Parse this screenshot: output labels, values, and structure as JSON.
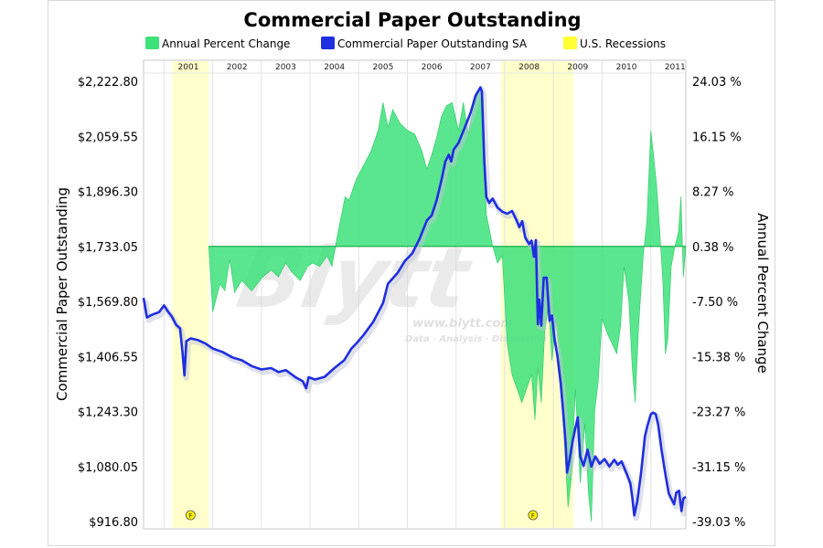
{
  "chart_data": {
    "type": "line",
    "title": "Commercial Paper Outstanding",
    "legend": {
      "placement": "top-center",
      "entries": [
        {
          "label": "Annual Percent Change",
          "color": "#3de27a"
        },
        {
          "label": "Commercial Paper Outstanding SA",
          "color": "#1f2ee0"
        },
        {
          "label": "U.S. Recessions",
          "color": "#ffff33"
        }
      ]
    },
    "ylabel_left": "Commercial Paper Outstanding",
    "ylabel_right": "Annual Percent Change",
    "y_left": {
      "range": [
        916.8,
        2222.8
      ],
      "ticks": [
        "$2,222.80",
        "$2,059.55",
        "$1,896.30",
        "$1,733.05",
        "$1,569.80",
        "$1,406.55",
        "$1,243.30",
        "$1,080.05",
        "$916.80"
      ]
    },
    "y_right": {
      "range": [
        -39.03,
        24.03
      ],
      "ticks": [
        "24.03 %",
        "16.15 %",
        "8.27 %",
        "0.38 %",
        "-7.50 %",
        "-15.38 %",
        "-23.27 %",
        "-31.15 %",
        "-39.03 %"
      ]
    },
    "x": {
      "range": [
        2000.58,
        2011.72
      ],
      "years": [
        "2001",
        "2002",
        "2003",
        "2004",
        "2005",
        "2006",
        "2007",
        "2008",
        "2009",
        "2010",
        "2011"
      ]
    },
    "recessions": [
      [
        2001.17,
        2001.92
      ],
      [
        2007.92,
        2009.42
      ]
    ],
    "series": [
      {
        "name": "Commercial Paper Outstanding SA",
        "color": "#1f2ee0",
        "axis": "left",
        "points": [
          [
            2000.58,
            1580
          ],
          [
            2000.65,
            1522
          ],
          [
            2000.75,
            1530
          ],
          [
            2000.9,
            1538
          ],
          [
            2001.0,
            1558
          ],
          [
            2001.08,
            1540
          ],
          [
            2001.16,
            1525
          ],
          [
            2001.25,
            1500
          ],
          [
            2001.33,
            1490
          ],
          [
            2001.38,
            1418
          ],
          [
            2001.42,
            1350
          ],
          [
            2001.46,
            1452
          ],
          [
            2001.55,
            1460
          ],
          [
            2001.7,
            1455
          ],
          [
            2001.85,
            1445
          ],
          [
            2002.0,
            1430
          ],
          [
            2002.2,
            1420
          ],
          [
            2002.4,
            1404
          ],
          [
            2002.6,
            1395
          ],
          [
            2002.8,
            1378
          ],
          [
            2003.0,
            1368
          ],
          [
            2003.2,
            1372
          ],
          [
            2003.35,
            1360
          ],
          [
            2003.5,
            1366
          ],
          [
            2003.7,
            1345
          ],
          [
            2003.85,
            1333
          ],
          [
            2003.92,
            1312
          ],
          [
            2003.97,
            1345
          ],
          [
            2004.1,
            1338
          ],
          [
            2004.3,
            1346
          ],
          [
            2004.5,
            1372
          ],
          [
            2004.7,
            1395
          ],
          [
            2004.85,
            1430
          ],
          [
            2004.95,
            1445
          ],
          [
            2005.1,
            1470
          ],
          [
            2005.3,
            1510
          ],
          [
            2005.5,
            1565
          ],
          [
            2005.6,
            1622
          ],
          [
            2005.7,
            1638
          ],
          [
            2005.8,
            1655
          ],
          [
            2005.95,
            1690
          ],
          [
            2006.1,
            1712
          ],
          [
            2006.25,
            1755
          ],
          [
            2006.4,
            1810
          ],
          [
            2006.5,
            1825
          ],
          [
            2006.6,
            1870
          ],
          [
            2006.7,
            1930
          ],
          [
            2006.78,
            1985
          ],
          [
            2006.85,
            2005
          ],
          [
            2006.9,
            1985
          ],
          [
            2006.95,
            2020
          ],
          [
            2007.05,
            2040
          ],
          [
            2007.15,
            2075
          ],
          [
            2007.3,
            2130
          ],
          [
            2007.4,
            2180
          ],
          [
            2007.5,
            2205
          ],
          [
            2007.53,
            2192
          ],
          [
            2007.58,
            1985
          ],
          [
            2007.62,
            1880
          ],
          [
            2007.68,
            1862
          ],
          [
            2007.75,
            1875
          ],
          [
            2007.85,
            1848
          ],
          [
            2007.95,
            1836
          ],
          [
            2008.05,
            1830
          ],
          [
            2008.15,
            1838
          ],
          [
            2008.25,
            1808
          ],
          [
            2008.3,
            1790
          ],
          [
            2008.36,
            1808
          ],
          [
            2008.42,
            1760
          ],
          [
            2008.5,
            1740
          ],
          [
            2008.55,
            1750
          ],
          [
            2008.6,
            1702
          ],
          [
            2008.64,
            1752
          ],
          [
            2008.68,
            1502
          ],
          [
            2008.71,
            1575
          ],
          [
            2008.75,
            1498
          ],
          [
            2008.8,
            1640
          ],
          [
            2008.86,
            1640
          ],
          [
            2008.92,
            1512
          ],
          [
            2008.97,
            1528
          ],
          [
            2009.02,
            1460
          ],
          [
            2009.08,
            1410
          ],
          [
            2009.15,
            1326
          ],
          [
            2009.2,
            1240
          ],
          [
            2009.25,
            1150
          ],
          [
            2009.28,
            1062
          ],
          [
            2009.33,
            1100
          ],
          [
            2009.4,
            1160
          ],
          [
            2009.5,
            1226
          ],
          [
            2009.55,
            1110
          ],
          [
            2009.62,
            1082
          ],
          [
            2009.7,
            1130
          ],
          [
            2009.78,
            1080
          ],
          [
            2009.86,
            1110
          ],
          [
            2009.95,
            1088
          ],
          [
            2010.05,
            1102
          ],
          [
            2010.15,
            1080
          ],
          [
            2010.25,
            1100
          ],
          [
            2010.32,
            1085
          ],
          [
            2010.4,
            1095
          ],
          [
            2010.5,
            1060
          ],
          [
            2010.58,
            1030
          ],
          [
            2010.62,
            990
          ],
          [
            2010.66,
            935
          ],
          [
            2010.72,
            975
          ],
          [
            2010.8,
            1060
          ],
          [
            2010.88,
            1170
          ],
          [
            2010.93,
            1200
          ],
          [
            2011.0,
            1235
          ],
          [
            2011.05,
            1240
          ],
          [
            2011.1,
            1236
          ],
          [
            2011.15,
            1205
          ],
          [
            2011.22,
            1130
          ],
          [
            2011.3,
            1058
          ],
          [
            2011.37,
            1000
          ],
          [
            2011.43,
            982
          ],
          [
            2011.48,
            968
          ],
          [
            2011.52,
            1002
          ],
          [
            2011.58,
            1008
          ],
          [
            2011.63,
            948
          ],
          [
            2011.67,
            985
          ],
          [
            2011.72,
            990
          ]
        ]
      },
      {
        "name": "Annual Percent Change",
        "color": "#3de27a",
        "axis": "right",
        "points": [
          [
            2001.92,
            0.38
          ],
          [
            2002.0,
            -9.0
          ],
          [
            2002.15,
            -5.0
          ],
          [
            2002.25,
            -6.0
          ],
          [
            2002.35,
            -1.5
          ],
          [
            2002.45,
            -6.2
          ],
          [
            2002.6,
            -4.5
          ],
          [
            2002.8,
            -6.0
          ],
          [
            2003.0,
            -4.2
          ],
          [
            2003.2,
            -3.0
          ],
          [
            2003.35,
            -4.0
          ],
          [
            2003.5,
            -2.0
          ],
          [
            2003.65,
            -3.5
          ],
          [
            2003.8,
            -4.5
          ],
          [
            2003.95,
            -2.5
          ],
          [
            2004.05,
            -2.0
          ],
          [
            2004.2,
            -2.5
          ],
          [
            2004.35,
            -1.0
          ],
          [
            2004.45,
            -2.5
          ],
          [
            2004.55,
            1.5
          ],
          [
            2004.62,
            4.0
          ],
          [
            2004.72,
            7.5
          ],
          [
            2004.8,
            7.0
          ],
          [
            2004.95,
            10.0
          ],
          [
            2005.1,
            12.0
          ],
          [
            2005.25,
            14.0
          ],
          [
            2005.4,
            17.0
          ],
          [
            2005.5,
            21.0
          ],
          [
            2005.6,
            17.5
          ],
          [
            2005.7,
            20.0
          ],
          [
            2005.85,
            18.0
          ],
          [
            2006.0,
            17.0
          ],
          [
            2006.15,
            16.5
          ],
          [
            2006.3,
            14.0
          ],
          [
            2006.4,
            11.5
          ],
          [
            2006.5,
            13.5
          ],
          [
            2006.6,
            16.0
          ],
          [
            2006.7,
            19.0
          ],
          [
            2006.8,
            20.5
          ],
          [
            2006.92,
            21.0
          ],
          [
            2007.05,
            17.0
          ],
          [
            2007.15,
            21.0
          ],
          [
            2007.25,
            16.5
          ],
          [
            2007.35,
            20.0
          ],
          [
            2007.45,
            22.5
          ],
          [
            2007.52,
            23.0
          ],
          [
            2007.58,
            15.0
          ],
          [
            2007.62,
            5.0
          ],
          [
            2007.68,
            3.0
          ],
          [
            2007.75,
            0.5
          ],
          [
            2007.85,
            -2.0
          ],
          [
            2007.95,
            -1.0
          ],
          [
            2008.05,
            -13.5
          ],
          [
            2008.15,
            -18.0
          ],
          [
            2008.25,
            -20.0
          ],
          [
            2008.35,
            -22.0
          ],
          [
            2008.45,
            -20.0
          ],
          [
            2008.55,
            -18.0
          ],
          [
            2008.62,
            -24.5
          ],
          [
            2008.68,
            -17.0
          ],
          [
            2008.75,
            -22.0
          ],
          [
            2008.82,
            -12.0
          ],
          [
            2008.9,
            -8.0
          ],
          [
            2008.97,
            -16.0
          ],
          [
            2009.05,
            -10.0
          ],
          [
            2009.12,
            -15.0
          ],
          [
            2009.2,
            -24.5
          ],
          [
            2009.3,
            -37.0
          ],
          [
            2009.38,
            -32.0
          ],
          [
            2009.45,
            -20.0
          ],
          [
            2009.55,
            -33.5
          ],
          [
            2009.65,
            -25.0
          ],
          [
            2009.72,
            -35.0
          ],
          [
            2009.78,
            -39.0
          ],
          [
            2009.85,
            -23.0
          ],
          [
            2009.92,
            -19.0
          ],
          [
            2010.0,
            -10.0
          ],
          [
            2010.1,
            -12.0
          ],
          [
            2010.2,
            -13.5
          ],
          [
            2010.3,
            -15.0
          ],
          [
            2010.38,
            -11.0
          ],
          [
            2010.45,
            -2.5
          ],
          [
            2010.55,
            -7.5
          ],
          [
            2010.62,
            -17.0
          ],
          [
            2010.68,
            -22.0
          ],
          [
            2010.75,
            -11.0
          ],
          [
            2010.85,
            -0.5
          ],
          [
            2010.92,
            4.0
          ],
          [
            2011.0,
            17.0
          ],
          [
            2011.05,
            14.0
          ],
          [
            2011.12,
            9.0
          ],
          [
            2011.18,
            3.0
          ],
          [
            2011.25,
            -5.0
          ],
          [
            2011.3,
            -15.0
          ],
          [
            2011.35,
            -13.0
          ],
          [
            2011.42,
            -2.5
          ],
          [
            2011.5,
            0.5
          ],
          [
            2011.57,
            2.5
          ],
          [
            2011.62,
            7.5
          ],
          [
            2011.67,
            -4.0
          ],
          [
            2011.72,
            0.38
          ]
        ]
      }
    ],
    "grid": true
  }
}
